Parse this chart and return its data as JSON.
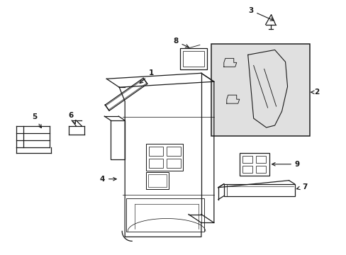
{
  "bg_color": "#ffffff",
  "line_color": "#1a1a1a",
  "fig_width": 4.89,
  "fig_height": 3.6,
  "dpi": 100,
  "box2_bg": "#e8e8e8",
  "label_fontsize": 7.5
}
